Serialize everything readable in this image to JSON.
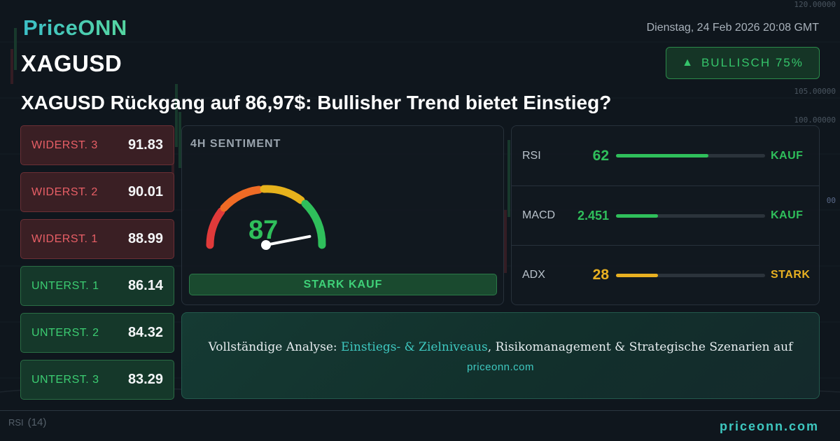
{
  "brand": {
    "logo": "PriceONN"
  },
  "header": {
    "symbol": "XAGUSD",
    "datetime": "Dienstag, 24 Feb 2026 20:08 GMT",
    "badge": {
      "icon": "triangle-up-icon",
      "label": "BULLISCH 75%"
    },
    "headline": "XAGUSD Rückgang auf 86,97$: Bullisher Trend bietet Einstieg?"
  },
  "levels": [
    {
      "label": "WIDERST. 3",
      "value": "91.83",
      "kind": "resistance"
    },
    {
      "label": "WIDERST. 2",
      "value": "90.01",
      "kind": "resistance"
    },
    {
      "label": "WIDERST. 1",
      "value": "88.99",
      "kind": "resistance"
    },
    {
      "label": "UNTERST. 1",
      "value": "86.14",
      "kind": "support"
    },
    {
      "label": "UNTERST. 2",
      "value": "84.32",
      "kind": "support"
    },
    {
      "label": "UNTERST. 3",
      "value": "83.29",
      "kind": "support"
    }
  ],
  "sentiment": {
    "title": "4H SENTIMENT",
    "value": "87",
    "level": 0.87,
    "verdict": "STARK KAUF"
  },
  "indicators": [
    {
      "name": "RSI",
      "value": "62",
      "fill": 0.62,
      "signal": "KAUF",
      "color": "#2fbf5b"
    },
    {
      "name": "MACD",
      "value": "2.451",
      "fill": 0.28,
      "signal": "KAUF",
      "color": "#2fbf5b"
    },
    {
      "name": "ADX",
      "value": "28",
      "fill": 0.28,
      "signal": "STARK",
      "color": "#e8b021"
    }
  ],
  "cta": {
    "prefix": "Vollständige Analyse: ",
    "accent": "Einstiegs- & Zielniveaus",
    "suffix": ", Risikomanagement & Strategische Szenarien auf",
    "url": "priceonn.com"
  },
  "background": {
    "axis_labels": [
      "120.00000",
      "105.00000",
      "100.00000",
      "00"
    ],
    "rsi_label": "RSI",
    "rsi_period": "(14)"
  },
  "footer": {
    "url": "priceonn.com"
  }
}
